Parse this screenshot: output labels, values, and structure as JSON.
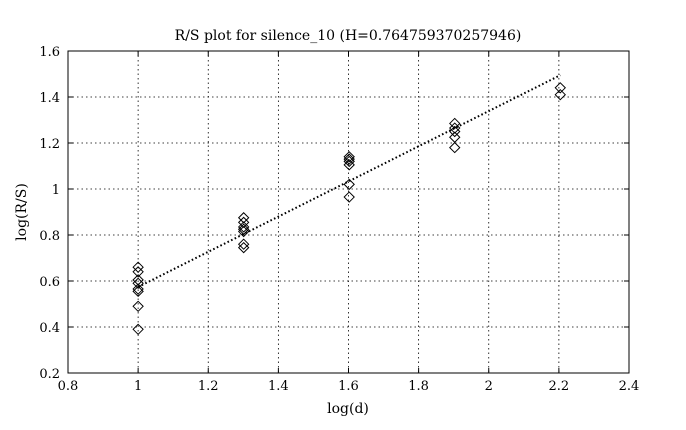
{
  "chart_data": {
    "type": "scatter",
    "title": "R/S plot for silence_10 (H=0.764759370257946)",
    "xlabel": "log(d)",
    "ylabel": "log(R/S)",
    "xlim": [
      0.8,
      2.4
    ],
    "ylim": [
      0.2,
      1.6
    ],
    "x_ticks": [
      0.8,
      1,
      1.2,
      1.4,
      1.6,
      1.8,
      2,
      2.2,
      2.4
    ],
    "x_tick_labels": [
      "0.8",
      "1",
      "1.2",
      "1.4",
      "1.6",
      "1.8",
      "2",
      "2.2",
      "2.4"
    ],
    "y_ticks": [
      0.2,
      0.4,
      0.6,
      0.8,
      1,
      1.2,
      1.4,
      1.6
    ],
    "y_tick_labels": [
      "0.2",
      "0.4",
      "0.6",
      "0.8",
      "1",
      "1.2",
      "1.4",
      "1.6"
    ],
    "grid": true,
    "marker": "diamond",
    "points": [
      {
        "x": 1.0,
        "y": 0.66
      },
      {
        "x": 1.0,
        "y": 0.64
      },
      {
        "x": 1.0,
        "y": 0.605
      },
      {
        "x": 1.0,
        "y": 0.59
      },
      {
        "x": 1.0,
        "y": 0.565
      },
      {
        "x": 1.0,
        "y": 0.555
      },
      {
        "x": 1.0,
        "y": 0.49
      },
      {
        "x": 1.0,
        "y": 0.39
      },
      {
        "x": 1.301,
        "y": 0.875
      },
      {
        "x": 1.301,
        "y": 0.855
      },
      {
        "x": 1.301,
        "y": 0.835
      },
      {
        "x": 1.301,
        "y": 0.825
      },
      {
        "x": 1.301,
        "y": 0.815
      },
      {
        "x": 1.301,
        "y": 0.76
      },
      {
        "x": 1.301,
        "y": 0.745
      },
      {
        "x": 1.602,
        "y": 1.14
      },
      {
        "x": 1.602,
        "y": 1.13
      },
      {
        "x": 1.602,
        "y": 1.12
      },
      {
        "x": 1.602,
        "y": 1.105
      },
      {
        "x": 1.602,
        "y": 1.02
      },
      {
        "x": 1.602,
        "y": 0.965
      },
      {
        "x": 1.903,
        "y": 1.285
      },
      {
        "x": 1.903,
        "y": 1.265
      },
      {
        "x": 1.903,
        "y": 1.25
      },
      {
        "x": 1.903,
        "y": 1.225
      },
      {
        "x": 1.903,
        "y": 1.18
      },
      {
        "x": 2.204,
        "y": 1.44
      },
      {
        "x": 2.204,
        "y": 1.41
      }
    ],
    "fit_line": {
      "style": "dotted",
      "slope": 0.764759370257946,
      "x_range": [
        1.0,
        2.204
      ]
    }
  }
}
